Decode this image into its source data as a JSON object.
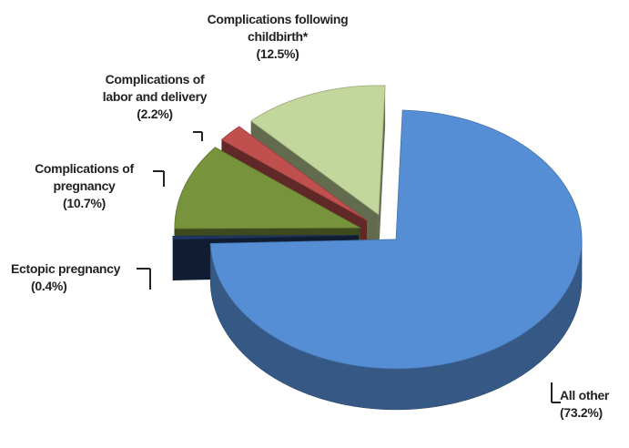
{
  "chart_data": {
    "type": "pie",
    "categories": [
      "All other",
      "Ectopic pregnancy",
      "Complications of pregnancy",
      "Complications of labor and delivery",
      "Complications following childbirth*"
    ],
    "values": [
      73.2,
      0.4,
      10.7,
      2.2,
      12.5
    ],
    "value_labels": [
      "(73.2%)",
      "(0.4%)",
      "(10.7%)",
      "(2.2%)",
      "(12.5%)"
    ],
    "colors": [
      "#558ed5",
      "#1f3864",
      "#77933c",
      "#c0504d",
      "#c3d69b"
    ]
  }
}
